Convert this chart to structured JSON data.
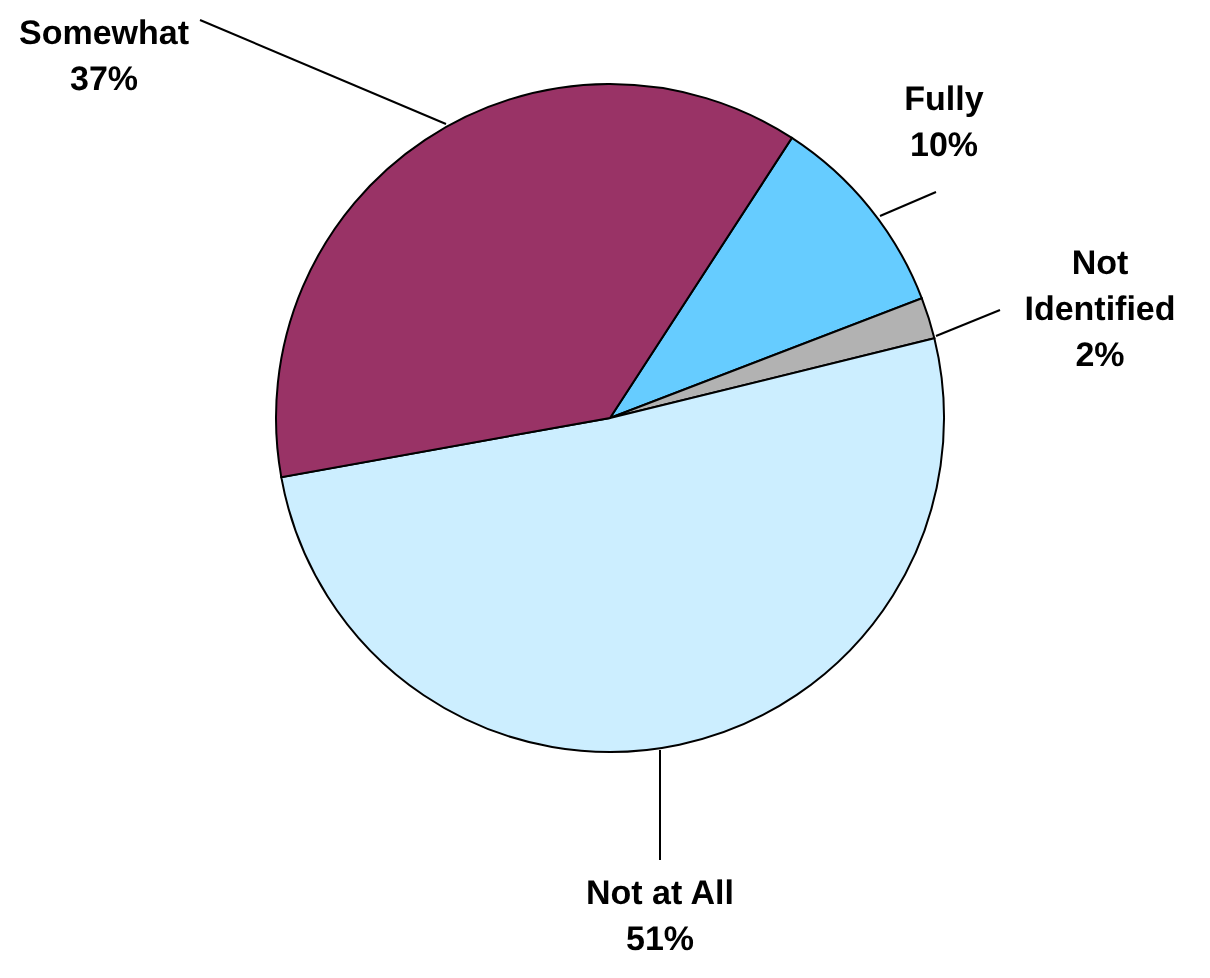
{
  "chart_data": {
    "type": "pie",
    "categories": [
      "Fully",
      "Not Identified",
      "Not at All",
      "Somewhat"
    ],
    "values": [
      10,
      2,
      51,
      37
    ],
    "colors": [
      "#66ccff",
      "#b2b2b2",
      "#cceeff",
      "#993366"
    ],
    "value_labels": [
      "10%",
      "2%",
      "51%",
      "37%"
    ]
  }
}
